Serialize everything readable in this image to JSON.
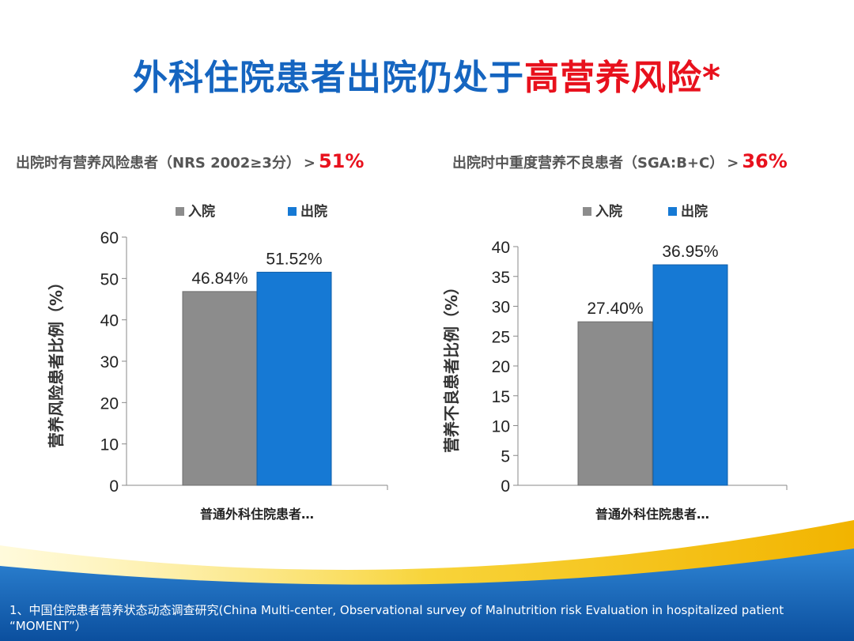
{
  "title": {
    "part1": "外科住院患者出院仍处于",
    "part2": "高营养风险*"
  },
  "subtitles": [
    {
      "text": "出院时有营养风险患者（NRS 2002≥3分）",
      "gt": ">",
      "pct": "51%"
    },
    {
      "text": "出院时中重度营养不良患者（SGA:B+C）",
      "gt": ">",
      "pct": "36%"
    }
  ],
  "colors": {
    "admission": "#8c8c8c",
    "discharge": "#1679d4",
    "title_blue": "#1565c0",
    "accent_red": "#e8111d"
  },
  "chart_data": [
    {
      "type": "bar",
      "categories": [
        "普通外科住院患者"
      ],
      "category_suffix": "…",
      "series": [
        {
          "name": "入院",
          "values": [
            46.84
          ],
          "labels": [
            "46.84%"
          ]
        },
        {
          "name": "出院",
          "values": [
            51.52
          ],
          "labels": [
            "51.52%"
          ]
        }
      ],
      "ylabel": "营养风险患者比例（%）",
      "ylim": [
        0,
        60
      ],
      "yticks": [
        0,
        10,
        20,
        30,
        40,
        50,
        60
      ],
      "legend": "top"
    },
    {
      "type": "bar",
      "categories": [
        "普通外科住院患者"
      ],
      "category_suffix": "…",
      "series": [
        {
          "name": "入院",
          "values": [
            27.4
          ],
          "labels": [
            "27.40%"
          ]
        },
        {
          "name": "出院",
          "values": [
            36.95
          ],
          "labels": [
            "36.95%"
          ]
        }
      ],
      "ylabel": "营养不良患者比例（%）",
      "ylim": [
        0,
        40
      ],
      "yticks": [
        0,
        5,
        10,
        15,
        20,
        25,
        30,
        35,
        40
      ],
      "legend": "top"
    }
  ],
  "footnote": "1、中国住院患者营养状态动态调查研究(China Multi-center, Observational survey of Malnutrition risk Evaluation in hospitalized patient “MOMENT”）"
}
